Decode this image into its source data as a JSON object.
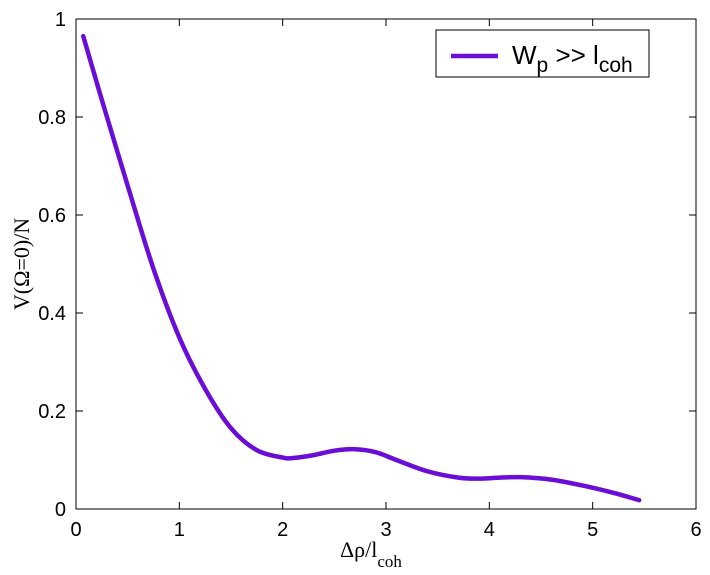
{
  "chart_data": {
    "type": "line",
    "title": "",
    "xlabel": {
      "main": "Δρ/l",
      "sub": "coh"
    },
    "ylabel": "V(Ω=0)/N",
    "xlim": [
      0,
      6
    ],
    "ylim": [
      0,
      1
    ],
    "x_ticks": [
      "0",
      "1",
      "2",
      "3",
      "4",
      "5",
      "6"
    ],
    "y_ticks": [
      "0",
      "0.2",
      "0.4",
      "0.6",
      "0.8",
      "1"
    ],
    "grid": false,
    "legend_position": "top-right",
    "series": [
      {
        "name": "W_p >> l_coh",
        "legend": {
          "w": "W",
          "w_sub": "p",
          "op": " >> l",
          "l_sub": "coh"
        },
        "color": "#6a0dd6",
        "x": [
          0.07,
          0.25,
          0.5,
          0.75,
          1.0,
          1.25,
          1.5,
          1.75,
          2.0,
          2.1,
          2.3,
          2.5,
          2.7,
          2.9,
          3.1,
          3.4,
          3.7,
          3.9,
          4.1,
          4.3,
          4.6,
          4.9,
          5.2,
          5.45
        ],
        "y": [
          0.965,
          0.835,
          0.66,
          0.49,
          0.35,
          0.245,
          0.165,
          0.12,
          0.105,
          0.104,
          0.11,
          0.119,
          0.122,
          0.116,
          0.1,
          0.077,
          0.064,
          0.062,
          0.064,
          0.065,
          0.06,
          0.048,
          0.033,
          0.018
        ]
      }
    ]
  }
}
